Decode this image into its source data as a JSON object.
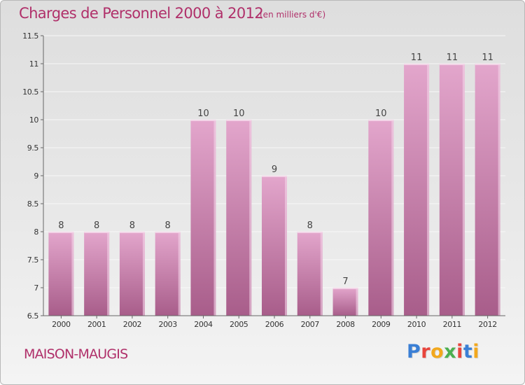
{
  "header": {
    "title": "Charges de Personnel 2000 à 2012",
    "subtitle": "(en milliers d'€)"
  },
  "footer": {
    "place": "MAISON-MAUGIS",
    "logo_text": "Proxiti"
  },
  "logo_colors": [
    "#3a7fd5",
    "#e8453c",
    "#f2a81d",
    "#4caf50",
    "#e8453c",
    "#3a7fd5",
    "#f2a81d"
  ],
  "colors": {
    "bar_top": "#e3a6cc",
    "bar_bottom": "#a85d8a",
    "bar_edge": "#f3d4e7",
    "axis": "#666666",
    "grid": "#f8f8f8",
    "title": "#b0306a"
  },
  "chart_data": {
    "type": "bar",
    "title": "Charges de Personnel 2000 à 2012",
    "subtitle": "(en milliers d'€)",
    "categories": [
      "2000",
      "2001",
      "2002",
      "2003",
      "2004",
      "2005",
      "2006",
      "2007",
      "2008",
      "2009",
      "2010",
      "2011",
      "2012"
    ],
    "values": [
      8,
      8,
      8,
      8,
      10,
      10,
      9,
      8,
      7,
      10,
      11,
      11,
      11
    ],
    "value_labels": [
      "8",
      "8",
      "8",
      "8",
      "10",
      "10",
      "9",
      "8",
      "7",
      "10",
      "11",
      "11",
      "11"
    ],
    "ylim": [
      6.5,
      11.5
    ],
    "yticks": [
      6.5,
      7,
      7.5,
      8,
      8.5,
      9,
      9.5,
      10,
      10.5,
      11,
      11.5
    ],
    "ytick_labels": [
      "6.5",
      "7",
      "7.5",
      "8",
      "8.5",
      "9",
      "9.5",
      "10",
      "10.5",
      "11",
      "11.5"
    ],
    "xlabel": "",
    "ylabel": "",
    "grid": true,
    "legend": "none"
  }
}
